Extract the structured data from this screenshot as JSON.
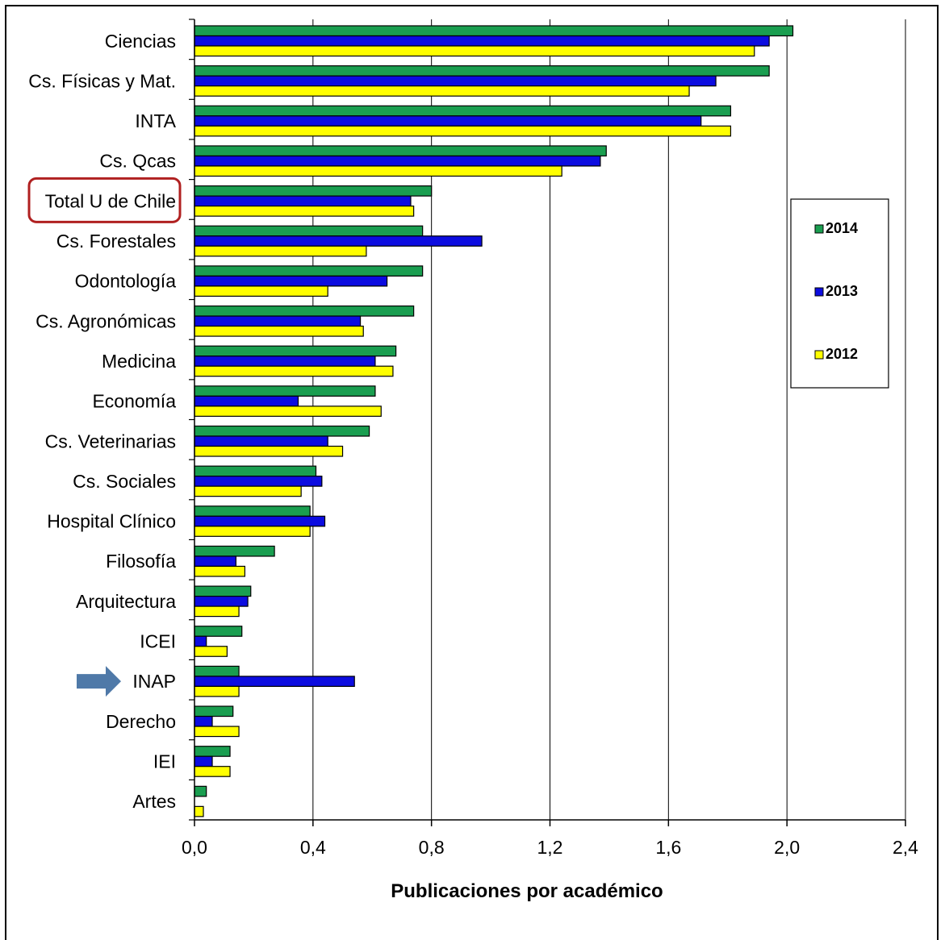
{
  "chart_data": {
    "type": "bar",
    "orientation": "horizontal",
    "title": "",
    "xlabel": "Publicaciones por académico",
    "ylabel": "",
    "xlim": [
      0,
      2.4
    ],
    "x_ticks": [
      "0,0",
      "0,4",
      "0,8",
      "1,2",
      "1,6",
      "2,0",
      "2,4"
    ],
    "grid": "vertical major gridlines",
    "legend_position": "right",
    "categories": [
      "Ciencias",
      "Cs. Físicas y Mat.",
      "INTA",
      "Cs. Qcas",
      "Total U de Chile",
      "Cs. Forestales",
      "Odontología",
      "Cs. Agronómicas",
      "Medicina",
      "Economía",
      "Cs. Veterinarias",
      "Cs. Sociales",
      "Hospital Clínico",
      "Filosofía",
      "Arquitectura",
      "ICEI",
      "INAP",
      "Derecho",
      "IEI",
      "Artes"
    ],
    "series": [
      {
        "name": "2014",
        "color": "#1a9e50",
        "values": [
          2.02,
          1.94,
          1.81,
          1.39,
          0.8,
          0.77,
          0.77,
          0.74,
          0.68,
          0.61,
          0.59,
          0.41,
          0.39,
          0.27,
          0.19,
          0.16,
          0.15,
          0.13,
          0.12,
          0.04
        ]
      },
      {
        "name": "2013",
        "color": "#0c0ce0",
        "values": [
          1.94,
          1.76,
          1.71,
          1.37,
          0.73,
          0.97,
          0.65,
          0.56,
          0.61,
          0.35,
          0.45,
          0.43,
          0.44,
          0.14,
          0.18,
          0.04,
          0.54,
          0.06,
          0.06,
          0.0
        ]
      },
      {
        "name": "2012",
        "color": "#ffff00",
        "values": [
          1.89,
          1.67,
          1.81,
          1.24,
          0.74,
          0.58,
          0.45,
          0.57,
          0.67,
          0.63,
          0.5,
          0.36,
          0.39,
          0.17,
          0.15,
          0.11,
          0.15,
          0.15,
          0.12,
          0.03
        ]
      }
    ],
    "annotations": [
      {
        "type": "highlight-box",
        "target": "Total U de Chile",
        "color": "#b02020"
      },
      {
        "type": "arrow",
        "target": "INAP",
        "color": "#4f79a8"
      }
    ]
  }
}
